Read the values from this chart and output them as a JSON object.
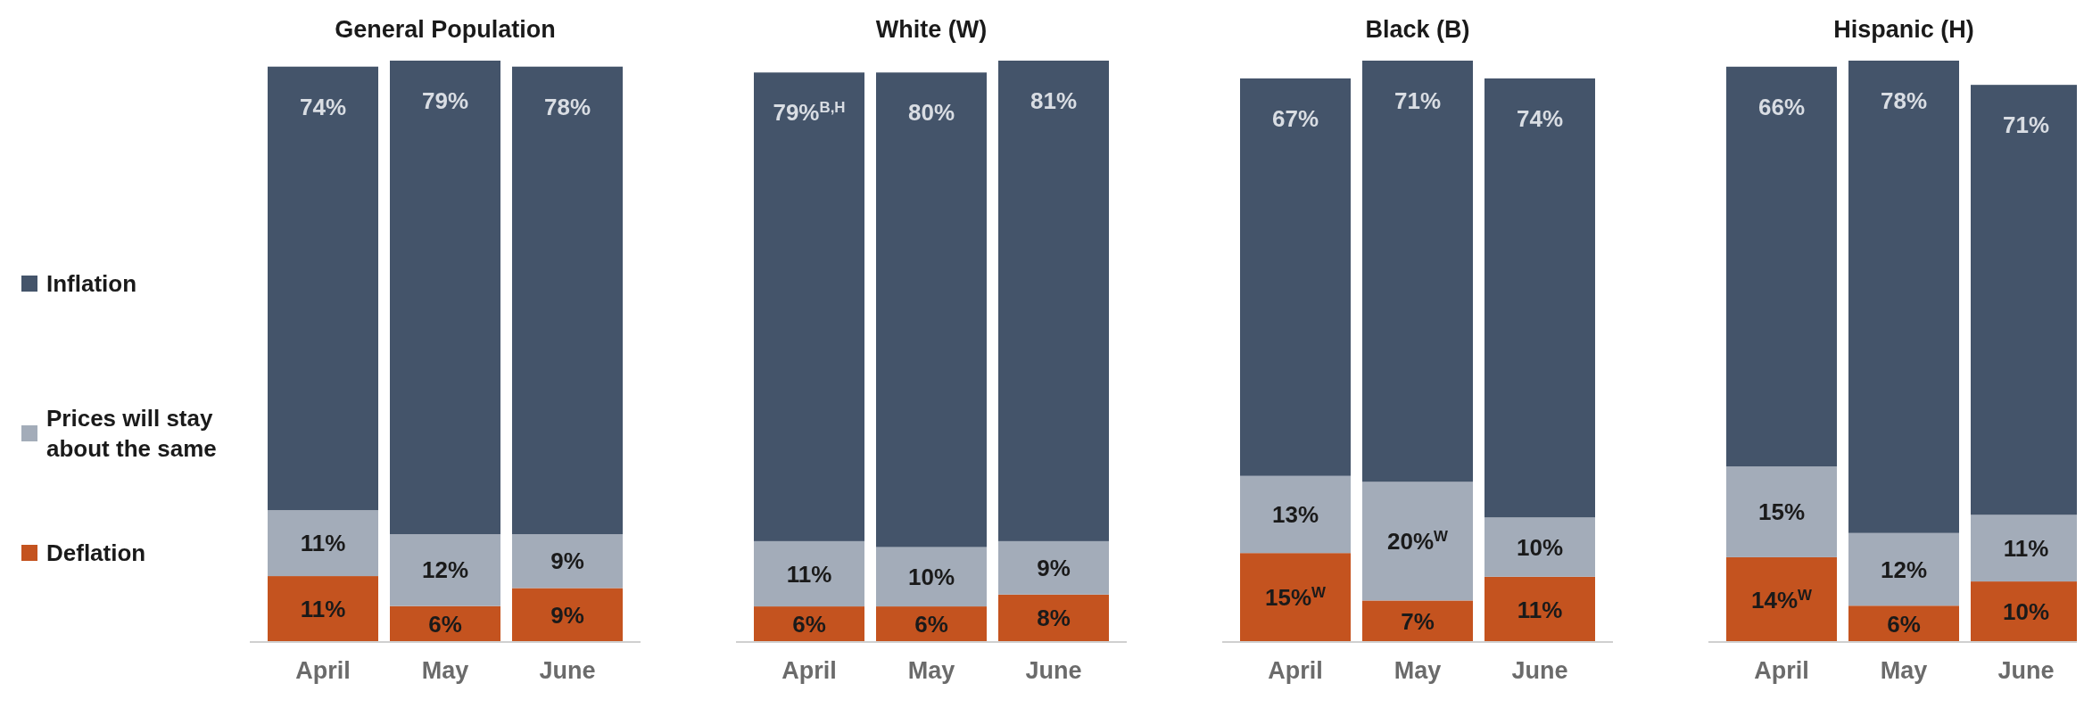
{
  "chart_data": [
    {
      "type": "bar",
      "title": "General Population",
      "categories": [
        "April",
        "May",
        "June"
      ],
      "stacked": true,
      "legend": "left",
      "data_labels": true,
      "series": [
        {
          "name": "Deflation",
          "color": "#c4531f",
          "values": [
            11,
            6,
            9
          ],
          "value_labels": [
            "11%",
            "6%",
            "9%"
          ]
        },
        {
          "name": "Prices will stay about the same",
          "color": "#a3acb9",
          "values": [
            11,
            12,
            9
          ],
          "value_labels": [
            "11%",
            "12%",
            "9%"
          ]
        },
        {
          "name": "Inflation",
          "color": "#44546a",
          "values": [
            74,
            79,
            78
          ],
          "value_labels": [
            "74%",
            "79%",
            "78%"
          ]
        }
      ]
    },
    {
      "type": "bar",
      "title": "White (W)",
      "categories": [
        "April",
        "May",
        "June"
      ],
      "stacked": true,
      "data_labels": true,
      "series": [
        {
          "color": "#c4531f",
          "values": [
            6,
            6,
            8
          ],
          "value_labels": [
            "6%",
            "6%",
            "8%"
          ]
        },
        {
          "color": "#a3acb9",
          "values": [
            11,
            10,
            9
          ],
          "value_labels": [
            "11%",
            "10%",
            "9%"
          ]
        },
        {
          "color": "#44546a",
          "values": [
            79,
            80,
            81
          ],
          "value_labels": [
            "79%$^{B,H}$",
            "80%",
            "81%"
          ]
        }
      ]
    },
    {
      "type": "bar",
      "title": "Black (B)",
      "categories": [
        "April",
        "May",
        "June"
      ],
      "stacked": true,
      "data_labels": true,
      "series": [
        {
          "color": "#c4531f",
          "values": [
            15,
            7,
            11
          ],
          "value_labels": [
            "15%$^{W}$",
            "7%",
            "11%"
          ]
        },
        {
          "color": "#a3acb9",
          "values": [
            13,
            20,
            10
          ],
          "value_labels": [
            "13%",
            "20%$^{W}$",
            "10%"
          ]
        },
        {
          "color": "#44546a",
          "values": [
            67,
            71,
            74
          ],
          "value_labels": [
            "67%",
            "71%",
            "74%"
          ]
        }
      ]
    },
    {
      "type": "bar",
      "title": "Hispanic (H)",
      "categories": [
        "April",
        "May",
        "June"
      ],
      "stacked": true,
      "data_labels": true,
      "series": [
        {
          "color": "#c4531f",
          "values": [
            14,
            6,
            10
          ],
          "value_labels": [
            "14%$^{W}$",
            "6%",
            "10%"
          ]
        },
        {
          "color": "#a3acb9",
          "values": [
            15,
            12,
            11
          ],
          "value_labels": [
            "15%",
            "12%",
            "11%"
          ]
        },
        {
          "color": "#44546a",
          "values": [
            66,
            78,
            71
          ],
          "value_labels": [
            "66%",
            "78%",
            "71%"
          ]
        }
      ]
    }
  ]
}
